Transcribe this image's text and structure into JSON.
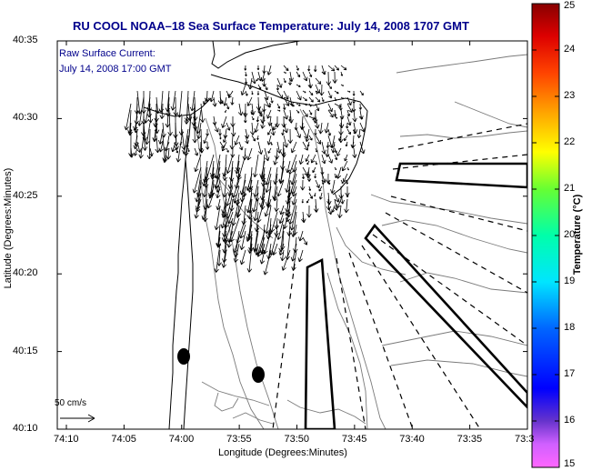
{
  "title": "RU COOL  NOAA–18  Sea Surface Temperature:  July 14, 2008 1707 GMT",
  "inset": {
    "line1": "Raw Surface Current:",
    "line2": "July 14, 2008 17:00 GMT"
  },
  "scale_label": "50 cm/s",
  "axes": {
    "xlabel": "Longitude (Degrees:Minutes)",
    "ylabel": "Latitude (Degrees:Minutes)",
    "x_ticks": [
      "74:10",
      "74:05",
      "74:00",
      "73:55",
      "73:50",
      "73:45",
      "73:40",
      "73:35",
      "73:3"
    ],
    "y_ticks": [
      "40:35",
      "40:30",
      "40:25",
      "40:20",
      "40:15",
      "40:10"
    ]
  },
  "colorbar": {
    "label": "Temperature (°C)",
    "ticks": [
      "25",
      "24",
      "23",
      "22",
      "21",
      "20",
      "19",
      "18",
      "17",
      "16",
      "15"
    ],
    "range": [
      15,
      25
    ]
  },
  "colors": {
    "title": "#00008b",
    "inset_text": "#00008b"
  }
}
